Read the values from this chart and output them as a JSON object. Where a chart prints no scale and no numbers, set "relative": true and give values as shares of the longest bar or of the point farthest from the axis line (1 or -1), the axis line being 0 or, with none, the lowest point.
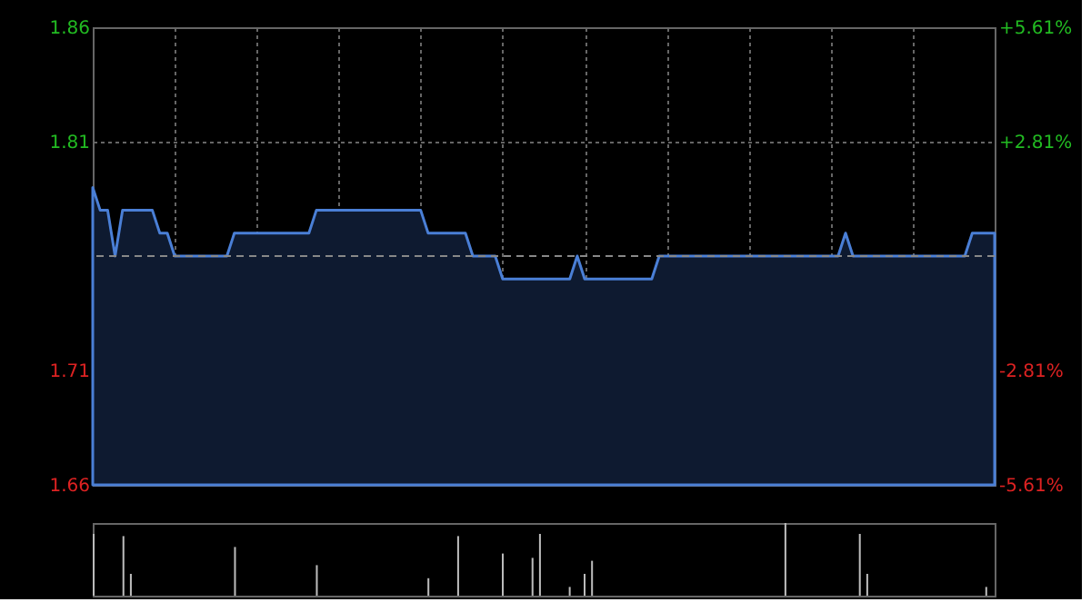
{
  "chart_data": [
    {
      "type": "area",
      "categories": [
        null,
        null,
        null,
        null,
        null,
        null,
        null,
        null,
        null,
        null,
        null,
        null,
        null,
        null,
        null,
        null,
        null,
        null,
        null,
        null,
        null,
        null,
        null,
        null,
        null,
        null,
        null,
        null,
        null,
        null,
        null,
        null,
        null,
        null,
        null,
        null,
        null,
        null,
        null,
        null,
        null,
        null,
        null,
        null,
        null,
        null,
        null,
        null,
        null,
        null,
        null,
        null,
        null,
        null,
        null,
        null,
        null,
        null,
        null,
        null,
        null,
        null,
        null,
        null,
        null,
        null,
        null,
        null,
        null,
        null,
        null,
        null,
        null,
        null,
        null,
        null,
        null,
        null,
        null,
        null,
        null,
        null,
        null,
        null,
        null,
        null,
        null,
        null,
        null,
        null,
        null,
        null,
        null,
        null,
        null,
        null,
        null,
        null,
        null,
        null,
        null,
        null,
        null,
        null,
        null,
        null,
        null,
        null,
        null,
        null,
        null,
        null,
        null,
        null,
        null,
        null,
        null,
        null,
        null,
        null,
        null,
        null
      ],
      "series": [
        {
          "color": "#4a7fd6",
          "values": [
            1.79,
            1.78,
            1.78,
            1.76,
            1.78,
            1.78,
            1.78,
            1.78,
            1.78,
            1.77,
            1.77,
            1.76,
            1.76,
            1.76,
            1.76,
            1.76,
            1.76,
            1.76,
            1.76,
            1.77,
            1.77,
            1.77,
            1.77,
            1.77,
            1.77,
            1.77,
            1.77,
            1.77,
            1.77,
            1.77,
            1.78,
            1.78,
            1.78,
            1.78,
            1.78,
            1.78,
            1.78,
            1.78,
            1.78,
            1.78,
            1.78,
            1.78,
            1.78,
            1.78,
            1.78,
            1.77,
            1.77,
            1.77,
            1.77,
            1.77,
            1.77,
            1.76,
            1.76,
            1.76,
            1.76,
            1.75,
            1.75,
            1.75,
            1.75,
            1.75,
            1.75,
            1.75,
            1.75,
            1.75,
            1.75,
            1.76,
            1.75,
            1.75,
            1.75,
            1.75,
            1.75,
            1.75,
            1.75,
            1.75,
            1.75,
            1.75,
            1.76,
            1.76,
            1.76,
            1.76,
            1.76,
            1.76,
            1.76,
            1.76,
            1.76,
            1.76,
            1.76,
            1.76,
            1.76,
            1.76,
            1.76,
            1.76,
            1.76,
            1.76,
            1.76,
            1.76,
            1.76,
            1.76,
            1.76,
            1.76,
            1.76,
            1.77,
            1.76,
            1.76,
            1.76,
            1.76,
            1.76,
            1.76,
            1.76,
            1.76,
            1.76,
            1.76,
            1.76,
            1.76,
            1.76,
            1.76,
            1.76,
            1.76,
            1.77,
            1.77,
            1.77,
            1.77
          ]
        }
      ],
      "ylim": [
        1.66,
        1.86
      ],
      "yticks": [
        1.66,
        1.71,
        1.81,
        1.86
      ],
      "y2lim": [
        -5.61,
        5.61
      ],
      "y2ticks": [
        {
          "value": -5.61,
          "label": "-5.61%"
        },
        {
          "value": -2.81,
          "label": "-2.81%"
        },
        {
          "value": 2.81,
          "label": "+2.81%"
        },
        {
          "value": 5.61,
          "label": "+5.61%"
        }
      ],
      "ref_lines": [
        {
          "axis": "y",
          "value": 1.76,
          "line_style": "dashed"
        }
      ],
      "grid": true,
      "tick_labels": "y",
      "legend": false
    },
    {
      "type": "bar",
      "relative": true,
      "categories": [
        null,
        null,
        null,
        null,
        null,
        null,
        null,
        null,
        null,
        null,
        null,
        null,
        null,
        null,
        null,
        null,
        null,
        null,
        null,
        null,
        null,
        null,
        null,
        null,
        null,
        null,
        null,
        null,
        null,
        null,
        null,
        null,
        null,
        null,
        null,
        null,
        null,
        null,
        null,
        null,
        null,
        null,
        null,
        null,
        null,
        null,
        null,
        null,
        null,
        null,
        null,
        null,
        null,
        null,
        null,
        null,
        null,
        null,
        null,
        null,
        null,
        null,
        null,
        null,
        null,
        null,
        null,
        null,
        null,
        null,
        null,
        null,
        null,
        null,
        null,
        null,
        null,
        null,
        null,
        null,
        null,
        null,
        null,
        null,
        null,
        null,
        null,
        null,
        null,
        null,
        null,
        null,
        null,
        null,
        null,
        null,
        null,
        null,
        null,
        null,
        null,
        null,
        null,
        null,
        null,
        null,
        null,
        null,
        null,
        null,
        null,
        null,
        null,
        null,
        null,
        null,
        null,
        null,
        null,
        null,
        null,
        null
      ],
      "values": [
        0.85,
        0,
        0,
        0,
        0.82,
        0.3,
        0,
        0,
        0,
        0,
        0,
        0,
        0,
        0,
        0,
        0,
        0,
        0,
        0,
        0.67,
        0,
        0,
        0,
        0,
        0,
        0,
        0,
        0,
        0,
        0,
        0.42,
        0,
        0,
        0,
        0,
        0,
        0,
        0,
        0,
        0,
        0,
        0,
        0,
        0,
        0,
        0.24,
        0,
        0,
        0,
        0.82,
        0,
        0,
        0,
        0,
        0,
        0.58,
        0,
        0,
        0,
        0.52,
        0.85,
        0,
        0,
        0,
        0.12,
        0,
        0.3,
        0.48,
        0,
        0,
        0,
        0,
        0,
        0,
        0,
        0,
        0,
        0,
        0,
        0,
        0,
        0,
        0,
        0,
        0,
        0,
        0,
        0,
        0,
        0,
        0,
        0,
        0,
        1,
        0,
        0,
        0,
        0,
        0,
        0,
        0,
        0,
        0,
        0.85,
        0.3,
        0,
        0,
        0,
        0,
        0,
        0,
        0,
        0,
        0,
        0,
        0,
        0,
        0,
        0,
        0,
        0.12,
        0
      ],
      "color": "#bbbbbb",
      "tick_labels": false,
      "legend": false
    }
  ]
}
